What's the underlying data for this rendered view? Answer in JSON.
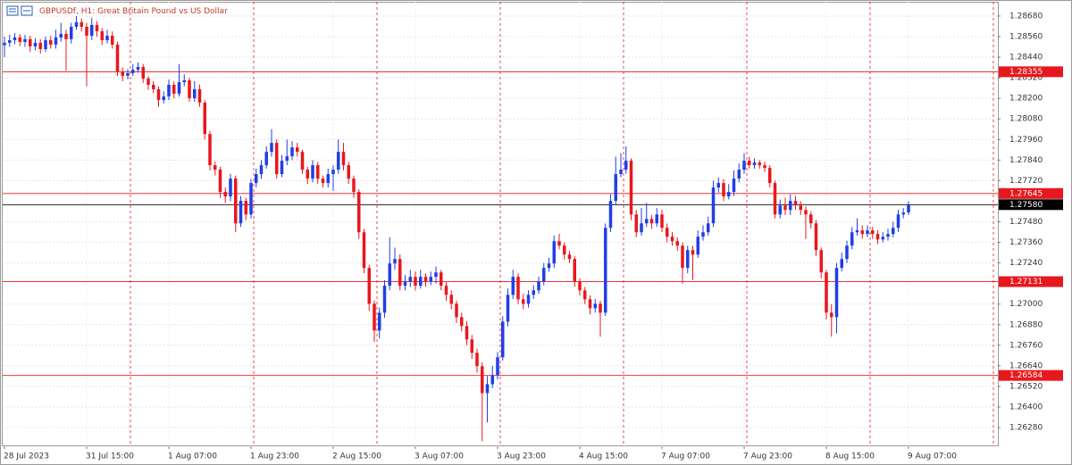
{
  "chart_data": {
    "type": "candlestick",
    "title": "GBPUSDf, H1:  Great Britain Pound vs US Dollar",
    "up_color": "#1f3fe6",
    "down_color": "#e8171c",
    "grid": true,
    "ylim": [
      1.26171,
      1.28763
    ],
    "yticks": [
      {
        "value": 1.2868,
        "label": "1.28680"
      },
      {
        "value": 1.2856,
        "label": "1.28560"
      },
      {
        "value": 1.2844,
        "label": "1.28440"
      },
      {
        "value": 1.2832,
        "label": "1.28320"
      },
      {
        "value": 1.282,
        "label": "1.28200"
      },
      {
        "value": 1.2808,
        "label": "1.28080"
      },
      {
        "value": 1.2796,
        "label": "1.27960"
      },
      {
        "value": 1.2784,
        "label": "1.27840"
      },
      {
        "value": 1.2772,
        "label": "1.27720"
      },
      {
        "value": 1.2748,
        "label": "1.27480"
      },
      {
        "value": 1.2736,
        "label": "1.27360"
      },
      {
        "value": 1.2724,
        "label": "1.27240"
      },
      {
        "value": 1.27,
        "label": "1.27000"
      },
      {
        "value": 1.2688,
        "label": "1.26880"
      },
      {
        "value": 1.2676,
        "label": "1.26760"
      },
      {
        "value": 1.2664,
        "label": "1.26640"
      },
      {
        "value": 1.2652,
        "label": "1.26520"
      },
      {
        "value": 1.264,
        "label": "1.26400"
      },
      {
        "value": 1.2628,
        "label": "1.26280"
      }
    ],
    "levels": [
      {
        "value": 1.28355,
        "color": "#e8171c"
      },
      {
        "value": 1.27645,
        "color": "#e8171c"
      },
      {
        "value": 1.2758,
        "label": "1.27580",
        "color": "#000000"
      },
      {
        "value": 1.27131,
        "color": "#e8171c"
      },
      {
        "value": 1.26584,
        "color": "#e8171c"
      }
    ],
    "categories": [
      "28 Jul 2023",
      null,
      null,
      null,
      null,
      null,
      null,
      null,
      null,
      null,
      null,
      null,
      null,
      null,
      null,
      null,
      "31 Jul 15:00",
      null,
      null,
      null,
      null,
      null,
      null,
      null,
      null,
      null,
      null,
      null,
      null,
      null,
      null,
      null,
      "1 Aug 07:00",
      null,
      null,
      null,
      null,
      null,
      null,
      null,
      null,
      null,
      null,
      null,
      null,
      null,
      null,
      null,
      "1 Aug 23:00",
      null,
      null,
      null,
      null,
      null,
      null,
      null,
      null,
      null,
      null,
      null,
      null,
      null,
      null,
      null,
      "2 Aug 15:00",
      null,
      null,
      null,
      null,
      null,
      null,
      null,
      null,
      null,
      null,
      null,
      null,
      null,
      null,
      null,
      "3 Aug 07:00",
      null,
      null,
      null,
      null,
      null,
      null,
      null,
      null,
      null,
      null,
      null,
      null,
      null,
      null,
      null,
      "3 Aug 23:00",
      null,
      null,
      null,
      null,
      null,
      null,
      null,
      null,
      null,
      null,
      null,
      null,
      null,
      null,
      null,
      "4 Aug 15:00",
      null,
      null,
      null,
      null,
      null,
      null,
      null,
      null,
      null,
      null,
      null,
      null,
      null,
      null,
      null,
      "7 Aug 07:00",
      null,
      null,
      null,
      null,
      null,
      null,
      null,
      null,
      null,
      null,
      null,
      null,
      null,
      null,
      null,
      "7 Aug 23:00",
      null,
      null,
      null,
      null,
      null,
      null,
      null,
      null,
      null,
      null,
      null,
      null,
      null,
      null,
      null,
      "8 Aug 15:00",
      null,
      null,
      null,
      null,
      null,
      null,
      null,
      null,
      null,
      null,
      null,
      null,
      null,
      null,
      null,
      "9 Aug 07:00"
    ],
    "open": [
      1.2851,
      1.28524,
      1.28539,
      1.28555,
      1.28529,
      1.28545,
      1.28503,
      1.28524,
      1.28487,
      1.28539,
      1.28513,
      1.28555,
      1.28576,
      1.28545,
      1.28617,
      1.28644,
      1.28617,
      1.28565,
      1.28628,
      1.28591,
      1.28539,
      1.28565,
      1.28513,
      1.28357,
      1.28331,
      1.28347,
      1.28367,
      1.28383,
      1.28315,
      1.28279,
      1.28253,
      1.2819,
      1.28211,
      1.28279,
      1.28227,
      1.28294,
      1.28305,
      1.28201,
      1.28253,
      1.28175,
      1.27992,
      1.2781,
      1.27784,
      1.27654,
      1.27628,
      1.27732,
      1.27471,
      1.27602,
      1.27523,
      1.27706,
      1.27758,
      1.2781,
      1.27888,
      1.2794,
      1.27758,
      1.27836,
      1.27862,
      1.27914,
      1.27888,
      1.27784,
      1.27732,
      1.2781,
      1.27732,
      1.27706,
      1.27758,
      1.27784,
      1.27888,
      1.2781,
      1.27732,
      1.27654,
      1.27419,
      1.27211,
      1.27002,
      1.26846,
      1.2695,
      1.27107,
      1.27237,
      1.27263,
      1.27107,
      1.27133,
      1.27159,
      1.27107,
      1.27159,
      1.27133,
      1.27159,
      1.27185,
      1.27107,
      1.27054,
      1.27002,
      1.26924,
      1.26872,
      1.26794,
      1.26716,
      1.26638,
      1.26481,
      1.26533,
      1.26586,
      1.2669,
      1.26898,
      1.27054,
      1.27159,
      1.27028,
      1.27002,
      1.27054,
      1.2708,
      1.27133,
      1.27211,
      1.27237,
      1.27367,
      1.27341,
      1.27289,
      1.27263,
      1.27133,
      1.2708,
      1.27028,
      1.26976,
      1.27002,
      1.2695,
      1.27445,
      1.27602,
      1.27758,
      1.27784,
      1.27836,
      1.27523,
      1.27419,
      1.27471,
      1.27497,
      1.27471,
      1.27523,
      1.27445,
      1.27393,
      1.27367,
      1.27341,
      1.27211,
      1.27315,
      1.27289,
      1.27393,
      1.27419,
      1.27471,
      1.2768,
      1.27706,
      1.27628,
      1.27654,
      1.27732,
      1.27784,
      1.27836,
      1.2781,
      1.27826,
      1.2781,
      1.27794,
      1.27706,
      1.27523,
      1.27575,
      1.27549,
      1.27602,
      1.27575,
      1.27549,
      1.27523,
      1.27471,
      1.27315,
      1.27185,
      1.2695,
      1.26924,
      1.27211,
      1.27263,
      1.27341,
      1.27419,
      1.2743,
      1.27409,
      1.2743,
      1.27409,
      1.27377,
      1.27393,
      1.27409,
      1.27445,
      1.27523,
      1.27534
    ],
    "high": [
      1.2856,
      1.2857,
      1.2858,
      1.28575,
      1.2857,
      1.28565,
      1.2855,
      1.28545,
      1.2856,
      1.28565,
      1.286,
      1.2864,
      1.286,
      1.2864,
      1.2868,
      1.28665,
      1.2864,
      1.2867,
      1.2865,
      1.2861,
      1.286,
      1.2859,
      1.2853,
      1.2838,
      1.2837,
      1.284,
      1.2841,
      1.284,
      1.2833,
      1.283,
      1.2827,
      1.2824,
      1.2831,
      1.283,
      1.284,
      1.2834,
      1.2832,
      1.283,
      1.2828,
      1.2819,
      1.2801,
      1.2783,
      1.278,
      1.2768,
      1.2776,
      1.2775,
      1.2763,
      1.2762,
      1.2773,
      1.2779,
      1.2784,
      1.2792,
      1.2802,
      1.2796,
      1.2787,
      1.2796,
      1.2795,
      1.2794,
      1.279,
      1.278,
      1.2784,
      1.2783,
      1.2775,
      1.2779,
      1.2781,
      1.2796,
      1.2794,
      1.2783,
      1.2775,
      1.2767,
      1.2744,
      1.2723,
      1.2702,
      1.2698,
      1.2714,
      1.2739,
      1.2733,
      1.2729,
      1.2717,
      1.272,
      1.2719,
      1.272,
      1.2718,
      1.2719,
      1.2722,
      1.272,
      1.2713,
      1.2708,
      1.2702,
      1.2695,
      1.269,
      1.2682,
      1.2674,
      1.2666,
      1.2658,
      1.2664,
      1.2672,
      1.2693,
      1.2709,
      1.272,
      1.2718,
      1.2706,
      1.2708,
      1.2711,
      1.2716,
      1.2724,
      1.2727,
      1.274,
      1.2741,
      1.2736,
      1.2731,
      1.2728,
      1.2715,
      1.271,
      1.2705,
      1.2703,
      1.2702,
      1.2747,
      1.2764,
      1.2786,
      1.2788,
      1.2792,
      1.2785,
      1.2755,
      1.2756,
      1.2759,
      1.2752,
      1.2756,
      1.2755,
      1.2747,
      1.2742,
      1.2739,
      1.2736,
      1.2734,
      1.2734,
      1.2743,
      1.2746,
      1.2751,
      1.2772,
      1.2774,
      1.2773,
      1.277,
      1.2778,
      1.2782,
      1.2788,
      1.2786,
      1.2785,
      1.2784,
      1.2783,
      1.2781,
      1.2772,
      1.2761,
      1.2762,
      1.2764,
      1.2763,
      1.276,
      1.2757,
      1.2754,
      1.2749,
      1.2733,
      1.272,
      1.27,
      1.2724,
      1.273,
      1.2737,
      1.2745,
      1.275,
      1.2746,
      1.2746,
      1.2745,
      1.2743,
      1.2742,
      1.2744,
      1.2748,
      1.2755,
      1.2756,
      1.276
    ],
    "low": [
      1.2844,
      1.285,
      1.28515,
      1.28505,
      1.285,
      1.2847,
      1.2848,
      1.2846,
      1.2847,
      1.2849,
      1.2849,
      1.2853,
      1.2836,
      1.2852,
      1.286,
      1.2859,
      1.2827,
      1.2854,
      1.2856,
      1.2851,
      1.2852,
      1.2849,
      1.2833,
      1.283,
      1.2831,
      1.2833,
      1.2835,
      1.2829,
      1.2825,
      1.2823,
      1.2815,
      1.2817,
      1.2819,
      1.282,
      1.2821,
      1.2827,
      1.2818,
      1.2818,
      1.2815,
      1.2796,
      1.2778,
      1.2775,
      1.2762,
      1.2759,
      1.276,
      1.2742,
      1.2745,
      1.2749,
      1.275,
      1.2768,
      1.2773,
      1.2779,
      1.2786,
      1.2773,
      1.2774,
      1.2781,
      1.2784,
      1.2786,
      1.2776,
      1.277,
      1.2771,
      1.277,
      1.2768,
      1.2768,
      1.2766,
      1.2776,
      1.2778,
      1.277,
      1.2762,
      1.2738,
      1.2718,
      1.2696,
      1.2678,
      1.268,
      1.2692,
      1.2708,
      1.272,
      1.2708,
      1.2708,
      1.271,
      1.2708,
      1.2709,
      1.271,
      1.2711,
      1.2712,
      1.2708,
      1.2702,
      1.2697,
      1.2689,
      1.2684,
      1.2676,
      1.2668,
      1.266,
      1.262,
      1.2631,
      1.2651,
      1.2656,
      1.2667,
      1.2687,
      1.2703,
      1.27,
      1.2697,
      1.2698,
      1.2703,
      1.2706,
      1.2711,
      1.2719,
      1.2721,
      1.2732,
      1.2726,
      1.2724,
      1.271,
      1.2705,
      1.27,
      1.2694,
      1.2695,
      1.2681,
      1.2693,
      1.2742,
      1.2758,
      1.2774,
      1.2776,
      1.2749,
      1.2739,
      1.274,
      1.2745,
      1.2744,
      1.2745,
      1.2742,
      1.2736,
      1.2734,
      1.2731,
      1.2712,
      1.2718,
      1.2714,
      1.2727,
      1.2737,
      1.274,
      1.2745,
      1.2765,
      1.276,
      1.2761,
      1.2763,
      1.2771,
      1.2776,
      1.2779,
      1.2779,
      1.2779,
      1.2777,
      1.2768,
      1.275,
      1.275,
      1.2752,
      1.2752,
      1.2755,
      1.2752,
      1.2738,
      1.2744,
      1.2728,
      1.2715,
      1.2691,
      1.2681,
      1.2683,
      1.2719,
      1.2724,
      1.2732,
      1.274,
      1.2738,
      1.2739,
      1.2738,
      1.2735,
      1.2736,
      1.2737,
      1.2739,
      1.2742,
      1.275,
      1.2752
    ],
    "close": [
      1.28524,
      1.28539,
      1.28555,
      1.28529,
      1.28545,
      1.28503,
      1.28524,
      1.28487,
      1.28539,
      1.28513,
      1.28555,
      1.28576,
      1.28545,
      1.28617,
      1.28644,
      1.28617,
      1.28565,
      1.28628,
      1.28591,
      1.28539,
      1.28565,
      1.28513,
      1.28357,
      1.28331,
      1.28347,
      1.28367,
      1.28383,
      1.28315,
      1.28279,
      1.28253,
      1.2819,
      1.28211,
      1.28279,
      1.28227,
      1.28294,
      1.28305,
      1.28201,
      1.28253,
      1.28175,
      1.27992,
      1.2781,
      1.27784,
      1.27654,
      1.27628,
      1.27732,
      1.27471,
      1.27602,
      1.27523,
      1.27706,
      1.27758,
      1.2781,
      1.27888,
      1.2794,
      1.27758,
      1.27836,
      1.27862,
      1.27914,
      1.27888,
      1.27784,
      1.27732,
      1.2781,
      1.27732,
      1.27706,
      1.27758,
      1.27784,
      1.27888,
      1.2781,
      1.27732,
      1.27654,
      1.27419,
      1.27211,
      1.27002,
      1.26846,
      1.2695,
      1.27107,
      1.27237,
      1.27263,
      1.27107,
      1.27133,
      1.27159,
      1.27107,
      1.27159,
      1.27133,
      1.27159,
      1.27185,
      1.27107,
      1.27054,
      1.27002,
      1.26924,
      1.26872,
      1.26794,
      1.26716,
      1.26638,
      1.26481,
      1.26533,
      1.26586,
      1.2669,
      1.26898,
      1.27054,
      1.27159,
      1.27028,
      1.27002,
      1.27054,
      1.2708,
      1.27133,
      1.27211,
      1.27237,
      1.27367,
      1.27341,
      1.27289,
      1.27263,
      1.27133,
      1.2708,
      1.27028,
      1.26976,
      1.27002,
      1.2695,
      1.27445,
      1.27602,
      1.27758,
      1.27784,
      1.27836,
      1.27523,
      1.27419,
      1.27471,
      1.27497,
      1.27471,
      1.27523,
      1.27445,
      1.27393,
      1.27367,
      1.27341,
      1.27211,
      1.27315,
      1.27289,
      1.27393,
      1.27419,
      1.27471,
      1.2768,
      1.27706,
      1.27628,
      1.27654,
      1.27732,
      1.27784,
      1.27836,
      1.2781,
      1.27826,
      1.2781,
      1.27794,
      1.27706,
      1.27523,
      1.27575,
      1.27549,
      1.27602,
      1.27575,
      1.27549,
      1.27523,
      1.27471,
      1.27315,
      1.27185,
      1.2695,
      1.26924,
      1.27211,
      1.27263,
      1.27341,
      1.27419,
      1.2743,
      1.27409,
      1.2743,
      1.27409,
      1.27377,
      1.27393,
      1.27409,
      1.27445,
      1.27523,
      1.27534,
      1.2758
    ]
  }
}
